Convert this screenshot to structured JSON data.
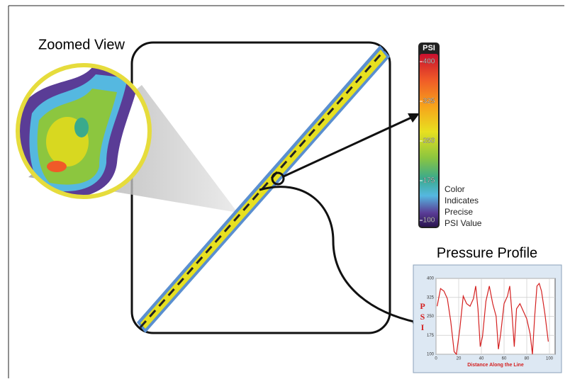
{
  "zoom_title": "Zoomed View",
  "colorbar": {
    "title": "PSI",
    "ylim": [
      100,
      400
    ],
    "ticks": [
      400,
      325,
      250,
      175,
      100
    ]
  },
  "color_note": [
    "Color",
    "Indicates",
    "Precise",
    "PSI Value"
  ],
  "pressure_profile": {
    "type": "line",
    "title": "Pressure Profile",
    "y_label": [
      "P",
      "S",
      "I"
    ],
    "x_label": "Distance Along the Line",
    "xlim": [
      0,
      105
    ],
    "ylim": [
      100,
      400
    ],
    "xticks": [
      0,
      20,
      40,
      60,
      80,
      100
    ],
    "yticks": [
      100,
      175,
      250,
      325,
      400
    ],
    "grid": true,
    "color": "#d42020",
    "x": [
      1,
      4,
      7,
      10,
      13,
      16,
      18,
      21,
      24,
      27,
      30,
      33,
      35,
      37,
      39,
      41,
      44,
      47,
      50,
      53,
      55,
      57,
      60,
      63,
      65,
      67,
      69,
      71,
      74,
      77,
      80,
      83,
      85,
      87,
      89,
      91,
      93,
      96,
      99
    ],
    "values": [
      290,
      360,
      350,
      320,
      230,
      110,
      100,
      200,
      330,
      300,
      290,
      320,
      370,
      280,
      130,
      170,
      310,
      370,
      300,
      250,
      120,
      180,
      300,
      330,
      370,
      260,
      130,
      280,
      300,
      270,
      240,
      180,
      100,
      250,
      370,
      380,
      350,
      260,
      150
    ]
  }
}
